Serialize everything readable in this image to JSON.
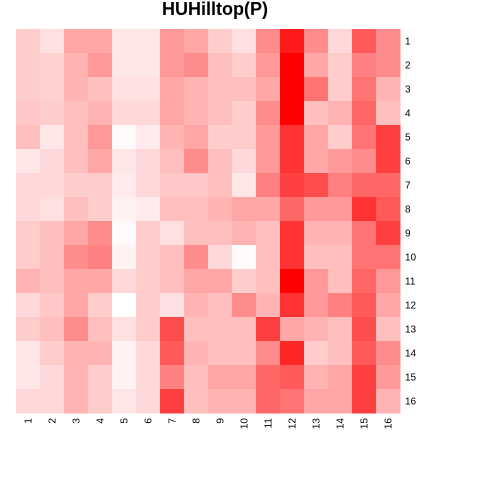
{
  "chart_data": {
    "type": "heatmap",
    "title": "HUHilltop(P)",
    "row_labels": [
      "1",
      "2",
      "3",
      "4",
      "5",
      "6",
      "7",
      "8",
      "9",
      "10",
      "11",
      "12",
      "13",
      "14",
      "15",
      "16"
    ],
    "col_labels": [
      "1",
      "2",
      "3",
      "4",
      "5",
      "6",
      "7",
      "8",
      "9",
      "10",
      "11",
      "12",
      "13",
      "14",
      "15",
      "16"
    ],
    "color_low": "#ffffff",
    "color_high": "#ff0000",
    "value_range": [
      0,
      1
    ],
    "values": [
      [
        0.2,
        0.12,
        0.35,
        0.35,
        0.1,
        0.1,
        0.4,
        0.35,
        0.2,
        0.12,
        0.45,
        0.9,
        0.45,
        0.15,
        0.65,
        0.45
      ],
      [
        0.2,
        0.18,
        0.3,
        0.4,
        0.1,
        0.1,
        0.4,
        0.45,
        0.25,
        0.2,
        0.4,
        1.0,
        0.35,
        0.2,
        0.5,
        0.45
      ],
      [
        0.2,
        0.18,
        0.3,
        0.25,
        0.12,
        0.12,
        0.35,
        0.3,
        0.25,
        0.25,
        0.35,
        1.0,
        0.55,
        0.2,
        0.55,
        0.3
      ],
      [
        0.22,
        0.2,
        0.25,
        0.3,
        0.15,
        0.15,
        0.35,
        0.3,
        0.25,
        0.2,
        0.45,
        1.0,
        0.25,
        0.3,
        0.6,
        0.25
      ],
      [
        0.25,
        0.1,
        0.25,
        0.4,
        0.02,
        0.08,
        0.3,
        0.35,
        0.2,
        0.2,
        0.4,
        0.8,
        0.35,
        0.2,
        0.55,
        0.75
      ],
      [
        0.1,
        0.15,
        0.25,
        0.35,
        0.1,
        0.15,
        0.25,
        0.45,
        0.25,
        0.15,
        0.4,
        0.8,
        0.35,
        0.4,
        0.45,
        0.75
      ],
      [
        0.15,
        0.15,
        0.2,
        0.2,
        0.08,
        0.15,
        0.22,
        0.22,
        0.25,
        0.1,
        0.5,
        0.75,
        0.7,
        0.5,
        0.6,
        0.6
      ],
      [
        0.15,
        0.12,
        0.25,
        0.2,
        0.05,
        0.08,
        0.25,
        0.25,
        0.3,
        0.35,
        0.35,
        0.6,
        0.4,
        0.4,
        0.8,
        0.65
      ],
      [
        0.2,
        0.25,
        0.35,
        0.45,
        0.02,
        0.2,
        0.12,
        0.25,
        0.25,
        0.3,
        0.25,
        0.8,
        0.3,
        0.3,
        0.55,
        0.75
      ],
      [
        0.2,
        0.25,
        0.45,
        0.5,
        0.05,
        0.2,
        0.25,
        0.45,
        0.15,
        0.02,
        0.25,
        0.8,
        0.25,
        0.25,
        0.55,
        0.55
      ],
      [
        0.3,
        0.25,
        0.35,
        0.35,
        0.15,
        0.2,
        0.25,
        0.35,
        0.35,
        0.2,
        0.25,
        1.0,
        0.4,
        0.25,
        0.6,
        0.4
      ],
      [
        0.15,
        0.22,
        0.35,
        0.2,
        0.0,
        0.2,
        0.12,
        0.3,
        0.25,
        0.45,
        0.3,
        0.8,
        0.4,
        0.5,
        0.65,
        0.35
      ],
      [
        0.2,
        0.25,
        0.45,
        0.25,
        0.12,
        0.2,
        0.7,
        0.25,
        0.25,
        0.25,
        0.75,
        0.35,
        0.3,
        0.25,
        0.7,
        0.25
      ],
      [
        0.1,
        0.2,
        0.3,
        0.3,
        0.05,
        0.15,
        0.65,
        0.3,
        0.25,
        0.25,
        0.45,
        0.85,
        0.2,
        0.25,
        0.65,
        0.45
      ],
      [
        0.1,
        0.15,
        0.3,
        0.2,
        0.05,
        0.15,
        0.5,
        0.25,
        0.35,
        0.35,
        0.6,
        0.65,
        0.3,
        0.35,
        0.75,
        0.4
      ],
      [
        0.15,
        0.15,
        0.3,
        0.2,
        0.1,
        0.15,
        0.75,
        0.25,
        0.3,
        0.3,
        0.6,
        0.55,
        0.35,
        0.35,
        0.75,
        0.3
      ]
    ]
  }
}
